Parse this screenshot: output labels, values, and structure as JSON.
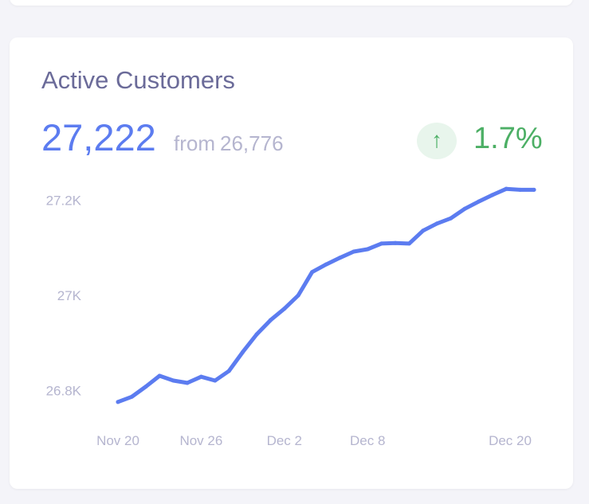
{
  "card": {
    "title": "Active Customers",
    "current_value": "27,222",
    "from_label": "from",
    "previous_value": "26,776",
    "trend_icon": "arrow-up-icon",
    "change_pct": "1.7%"
  },
  "colors": {
    "line": "#5c7cf0",
    "positive": "#4caf65",
    "muted": "#b5b5cf"
  },
  "chart_data": {
    "type": "line",
    "title": "Active Customers",
    "xlabel": "",
    "ylabel": "",
    "x_tick_labels": [
      "Nov 20",
      "Nov 26",
      "Dec 2",
      "Dec 8",
      "Dec 20"
    ],
    "x_tick_days": [
      0,
      6,
      12,
      18,
      30
    ],
    "y_tick_labels": [
      "27.2K",
      "27K",
      "26.8K"
    ],
    "y_tick_values": [
      27200,
      27000,
      26800
    ],
    "ylim": [
      26760,
      27240
    ],
    "grid": false,
    "series": [
      {
        "name": "Active Customers",
        "x_days": [
          0,
          1,
          2,
          3,
          4,
          5,
          6,
          7,
          8,
          9,
          10,
          11,
          12,
          13,
          14,
          15,
          16,
          17,
          18,
          19,
          20,
          21,
          22,
          23,
          24,
          25,
          26,
          27,
          28,
          29,
          30
        ],
        "values": [
          26776,
          26787,
          26808,
          26831,
          26821,
          26816,
          26829,
          26821,
          26841,
          26881,
          26918,
          26948,
          26972,
          27000,
          27049,
          27065,
          27079,
          27092,
          27097,
          27109,
          27110,
          27109,
          27136,
          27151,
          27162,
          27182,
          27197,
          27211,
          27224,
          27222,
          27222
        ]
      }
    ]
  }
}
